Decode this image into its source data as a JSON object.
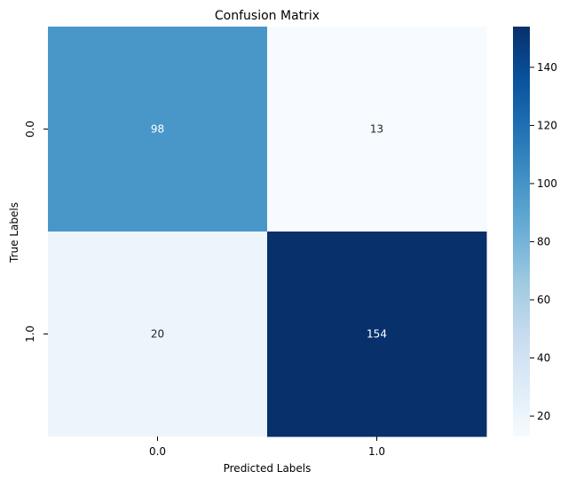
{
  "chart_data": {
    "type": "heatmap",
    "title": "Confusion Matrix",
    "xlabel": "Predicted Labels",
    "ylabel": "True Labels",
    "x_categories": [
      "0.0",
      "1.0"
    ],
    "y_categories": [
      "0.0",
      "1.0"
    ],
    "matrix": [
      [
        98,
        13
      ],
      [
        20,
        154
      ]
    ],
    "colorbar": {
      "min": 13,
      "max": 154,
      "ticks": [
        20,
        40,
        60,
        80,
        100,
        120,
        140
      ],
      "tick_labels": [
        "20",
        "40",
        "60",
        "80",
        "100",
        "120",
        "140"
      ]
    },
    "colormap": "Blues",
    "colors": {
      "low": "#f7fbff",
      "high": "#08306b",
      "annotation_dark_text": "#262626",
      "annotation_light_text": "#ffffff"
    },
    "grid": false
  }
}
